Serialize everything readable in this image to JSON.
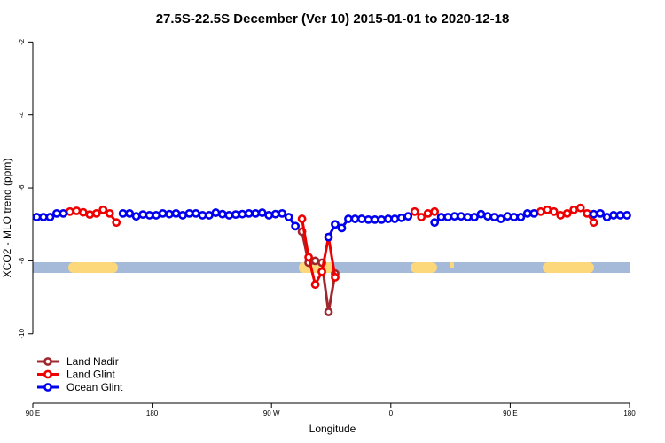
{
  "chart_data": {
    "type": "line",
    "title": "27.5S-22.5S December (Ver 10)   2015-01-01 to 2020-12-18",
    "x_label": "Longitude",
    "y_label": "XCO2 - MLO trend (ppm)",
    "xlim": [
      90,
      540
    ],
    "xticks": [
      {
        "value": 90,
        "label": "90 E"
      },
      180,
      {
        "value": 270,
        "label": "90 W"
      },
      {
        "value": 360,
        "label": "0"
      },
      {
        "value": 450,
        "label": "90 E"
      },
      {
        "value": 540,
        "label": "180"
      }
    ],
    "ylim": [
      -11.9,
      -1.7
    ],
    "yticks": [
      -2,
      -4,
      -6,
      -8,
      -10
    ],
    "legend": "bottom-left",
    "x": [
      93,
      98,
      103,
      108,
      113,
      118,
      123,
      128,
      133,
      138,
      143,
      148,
      153,
      158,
      163,
      168,
      173,
      178,
      183,
      188,
      193,
      198,
      203,
      208,
      213,
      218,
      223,
      228,
      233,
      238,
      243,
      248,
      253,
      258,
      263,
      268,
      273,
      278,
      283,
      288,
      293,
      298,
      303,
      308,
      313,
      318,
      323,
      328,
      333,
      338,
      343,
      348,
      353,
      358,
      363,
      368,
      373,
      378,
      383,
      388,
      393,
      398,
      403,
      408,
      413,
      418,
      423,
      428,
      433,
      438,
      443,
      448,
      453,
      458,
      463,
      468,
      473,
      478,
      483,
      488,
      493,
      498,
      503,
      508,
      513,
      518,
      523,
      528,
      533,
      538
    ],
    "series": [
      {
        "name": "Land Nadir",
        "color": "#a0282d",
        "values": [
          null,
          null,
          null,
          null,
          null,
          null,
          null,
          null,
          null,
          null,
          null,
          null,
          null,
          null,
          null,
          null,
          null,
          null,
          null,
          null,
          null,
          null,
          null,
          null,
          null,
          null,
          null,
          null,
          null,
          null,
          null,
          null,
          null,
          null,
          null,
          null,
          null,
          null,
          null,
          null,
          -7.2,
          -8.05,
          -8.0,
          -8.05,
          -9.4,
          -8.35,
          null,
          null,
          null,
          null,
          null,
          null,
          null,
          null,
          null,
          null,
          null,
          null,
          null,
          null,
          null,
          null,
          null,
          null,
          null,
          null,
          null,
          null,
          null,
          null,
          null,
          null,
          null,
          null,
          null,
          null,
          null,
          null,
          null,
          null,
          null,
          null,
          null,
          null,
          null,
          null,
          null,
          null,
          null,
          null
        ]
      },
      {
        "name": "Land Glint",
        "color": "#ee0000",
        "values": [
          null,
          null,
          null,
          null,
          null,
          -6.65,
          -6.63,
          -6.67,
          -6.73,
          -6.7,
          -6.6,
          -6.7,
          -6.95,
          null,
          null,
          null,
          null,
          null,
          null,
          null,
          null,
          null,
          null,
          null,
          null,
          null,
          null,
          null,
          null,
          null,
          null,
          null,
          null,
          null,
          null,
          null,
          null,
          null,
          null,
          null,
          -6.85,
          -7.9,
          -8.65,
          -8.3,
          -7.35,
          -8.45,
          null,
          null,
          null,
          null,
          null,
          null,
          null,
          null,
          null,
          null,
          null,
          -6.65,
          -6.8,
          -6.7,
          -6.65,
          null,
          null,
          null,
          null,
          null,
          null,
          null,
          null,
          null,
          null,
          null,
          null,
          null,
          null,
          null,
          -6.65,
          -6.6,
          -6.65,
          -6.75,
          -6.7,
          -6.6,
          -6.55,
          -6.7,
          -6.95,
          null,
          null,
          null,
          null,
          null
        ]
      },
      {
        "name": "Ocean Glint",
        "color": "#0000ee",
        "values": [
          -6.8,
          -6.8,
          -6.8,
          -6.7,
          -6.7,
          null,
          null,
          null,
          null,
          null,
          null,
          null,
          null,
          -6.7,
          -6.7,
          -6.78,
          -6.73,
          -6.75,
          -6.75,
          -6.7,
          -6.72,
          -6.7,
          -6.75,
          -6.7,
          -6.7,
          -6.75,
          -6.75,
          -6.68,
          -6.72,
          -6.75,
          -6.73,
          -6.72,
          -6.7,
          -6.7,
          -6.68,
          -6.75,
          -6.72,
          -6.7,
          -6.8,
          -7.05,
          null,
          null,
          null,
          null,
          -7.35,
          -7.0,
          -7.1,
          -6.85,
          -6.85,
          -6.85,
          -6.87,
          -6.87,
          -6.87,
          -6.85,
          -6.85,
          -6.82,
          -6.78,
          null,
          null,
          null,
          -6.95,
          -6.8,
          -6.8,
          -6.78,
          -6.78,
          -6.8,
          -6.8,
          -6.72,
          -6.78,
          -6.8,
          -6.85,
          -6.78,
          -6.8,
          -6.8,
          -6.7,
          -6.7,
          null,
          null,
          null,
          null,
          null,
          null,
          null,
          null,
          -6.72,
          -6.7,
          -6.8,
          -6.75,
          -6.75,
          -6.75
        ]
      }
    ]
  }
}
